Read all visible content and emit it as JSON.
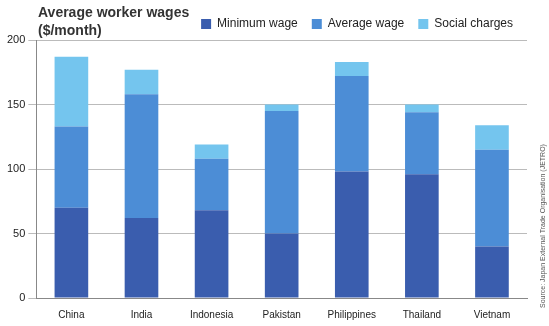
{
  "chart_data": {
    "type": "bar",
    "title": [
      "Average worker wages",
      "($/month)"
    ],
    "categories": [
      "China",
      "India",
      "Indonesia",
      "Pakistan",
      "Philippines",
      "Thailand",
      "Vietnam"
    ],
    "series": [
      {
        "name": "Minimum wage",
        "color": "#3a5dae",
        "values": [
          70,
          62,
          68,
          50,
          98,
          96,
          40
        ]
      },
      {
        "name": "Average wage",
        "color": "#4c8dd6",
        "values": [
          63,
          96,
          40,
          95,
          74,
          48,
          75
        ]
      },
      {
        "name": "Social charges",
        "color": "#74c5ee",
        "values": [
          54,
          19,
          11,
          5,
          11,
          6,
          19
        ]
      }
    ],
    "ylim": [
      0,
      200
    ],
    "yticks": [
      0,
      50,
      100,
      150,
      200
    ],
    "grid": true,
    "stacked": true,
    "legend": "top-right",
    "annotations": [
      "Source: Japan External Trade Organisation (JETRO)"
    ]
  }
}
